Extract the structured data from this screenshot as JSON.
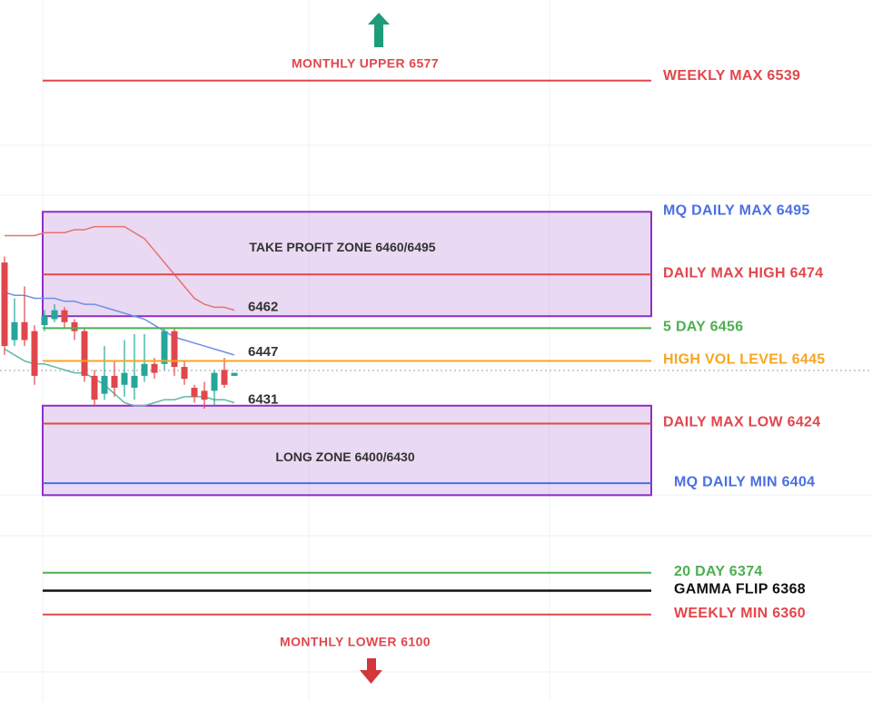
{
  "chart_data": {
    "type": "levels",
    "ylim": [
      6331,
      6566
    ],
    "annotations": [
      "MONTHLY UPPER 6577",
      "MONTHLY LOWER 6100"
    ],
    "levels": {
      "values": [
        6539,
        6495,
        6474,
        6456,
        6445,
        6424,
        6404,
        6374,
        6368,
        6360
      ],
      "value_labels": [
        "WEEKLY MAX 6539",
        "MQ DAILY MAX 6495",
        "DAILY MAX HIGH 6474",
        "5 DAY 6456",
        "HIGH VOL LEVEL 6445",
        "DAILY MAX LOW 6424",
        "MQ DAILY MIN 6404",
        "20 DAY 6374",
        "GAMMA FLIP 6368",
        "WEEKLY MIN 6360"
      ],
      "colors": [
        "#e0474c",
        "#4a6fe3",
        "#e0474c",
        "#4caf50",
        "#f5a623",
        "#e0474c",
        "#4a6fe3",
        "#4caf50",
        "#111111",
        "#e0474c"
      ]
    },
    "zones": {
      "labels": [
        "TAKE PROFIT ZONE 6460/6495",
        "LONG ZONE 6400/6430"
      ],
      "lows": [
        6460,
        6400
      ],
      "highs": [
        6495,
        6430
      ]
    },
    "x": [
      0,
      1,
      2,
      3,
      4,
      5,
      6,
      7,
      8,
      9,
      10,
      11,
      12,
      13,
      14,
      15,
      16,
      17,
      18,
      19,
      20,
      21,
      22,
      23
    ],
    "candles": {
      "open": [
        6478,
        6452,
        6458,
        6455,
        6457,
        6459,
        6462,
        6458,
        6455,
        6440,
        6434,
        6440,
        6437,
        6436,
        6440,
        6444,
        6444,
        6455,
        6443,
        6436,
        6435,
        6435,
        6442,
        6440
      ],
      "high": [
        6480,
        6466,
        6470,
        6457,
        6462,
        6464,
        6463,
        6459,
        6456,
        6442,
        6450,
        6445,
        6452,
        6454,
        6454,
        6446,
        6456,
        6456,
        6445,
        6437,
        6438,
        6442,
        6446,
        6441
      ],
      "low": [
        6447,
        6450,
        6450,
        6437,
        6455,
        6458,
        6456,
        6452,
        6438,
        6430,
        6432,
        6433,
        6433,
        6432,
        6438,
        6439,
        6442,
        6440,
        6437,
        6431,
        6429,
        6430,
        6436,
        6440
      ],
      "close": [
        6450,
        6458,
        6452,
        6440,
        6460,
        6462,
        6458,
        6455,
        6440,
        6432,
        6440,
        6436,
        6441,
        6440,
        6444,
        6441,
        6455,
        6443,
        6439,
        6433,
        6432,
        6441,
        6437,
        6441
      ],
      "up_color": "#26a69a",
      "down_color": "#e0474c"
    },
    "series": [
      {
        "color": "#e57373",
        "values": [
          6487,
          6487,
          6487,
          6487,
          6488,
          6488,
          6488,
          6489,
          6489,
          6490,
          6490,
          6490,
          6490,
          6488,
          6486,
          6482,
          6478,
          6474,
          6470,
          6466,
          6464,
          6463,
          6463,
          6462
        ]
      },
      {
        "color": "#6f8fe8",
        "values": [
          6468,
          6467,
          6467,
          6466,
          6466,
          6466,
          6465,
          6465,
          6464,
          6464,
          6463,
          6462,
          6461,
          6460,
          6459,
          6457,
          6455,
          6453,
          6452,
          6451,
          6450,
          6449,
          6448,
          6447
        ]
      },
      {
        "color": "#5fb8a8",
        "values": [
          6449,
          6447,
          6445,
          6444,
          6444,
          6443,
          6442,
          6441,
          6441,
          6439,
          6437,
          6434,
          6431,
          6430,
          6430,
          6431,
          6432,
          6432,
          6433,
          6433,
          6433,
          6432,
          6432,
          6431
        ]
      }
    ]
  }
}
